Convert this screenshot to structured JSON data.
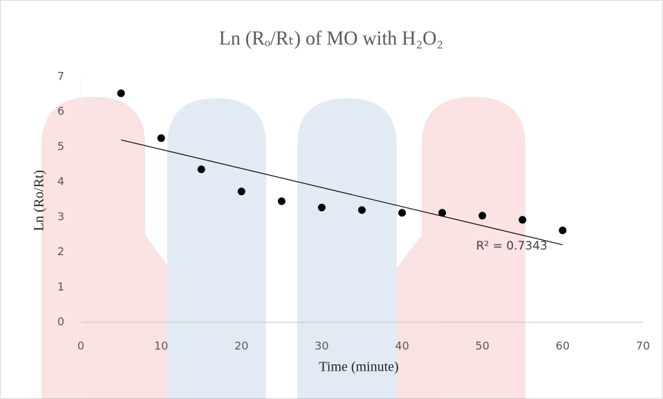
{
  "chart_data": {
    "type": "scatter",
    "title": "Ln (Rₒ/Rₜ) of MO with H₂O₂",
    "x_label": "Time (minute)",
    "y_label": "Ln (Ro/Rt)",
    "series": [
      {
        "name": "Ln (Ro/Rt)",
        "color": "#000000",
        "x": [
          5,
          10,
          15,
          20,
          25,
          30,
          35,
          40,
          45,
          50,
          55,
          60
        ],
        "values": [
          6.53,
          5.25,
          4.36,
          3.73,
          3.45,
          3.27,
          3.2,
          3.12,
          3.12,
          3.04,
          2.92,
          2.62
        ]
      }
    ],
    "trendline": {
      "x": [
        5,
        60
      ],
      "values": [
        5.2,
        2.21
      ],
      "label": "R² = 0.7343",
      "color": "#000000"
    },
    "xlim": [
      0,
      70
    ],
    "xticks": [
      0,
      10,
      20,
      30,
      40,
      50,
      60,
      70
    ],
    "ylim": [
      0,
      7
    ],
    "yticks": [
      0,
      1,
      2,
      3,
      4,
      5,
      6,
      7
    ],
    "grid": false
  }
}
